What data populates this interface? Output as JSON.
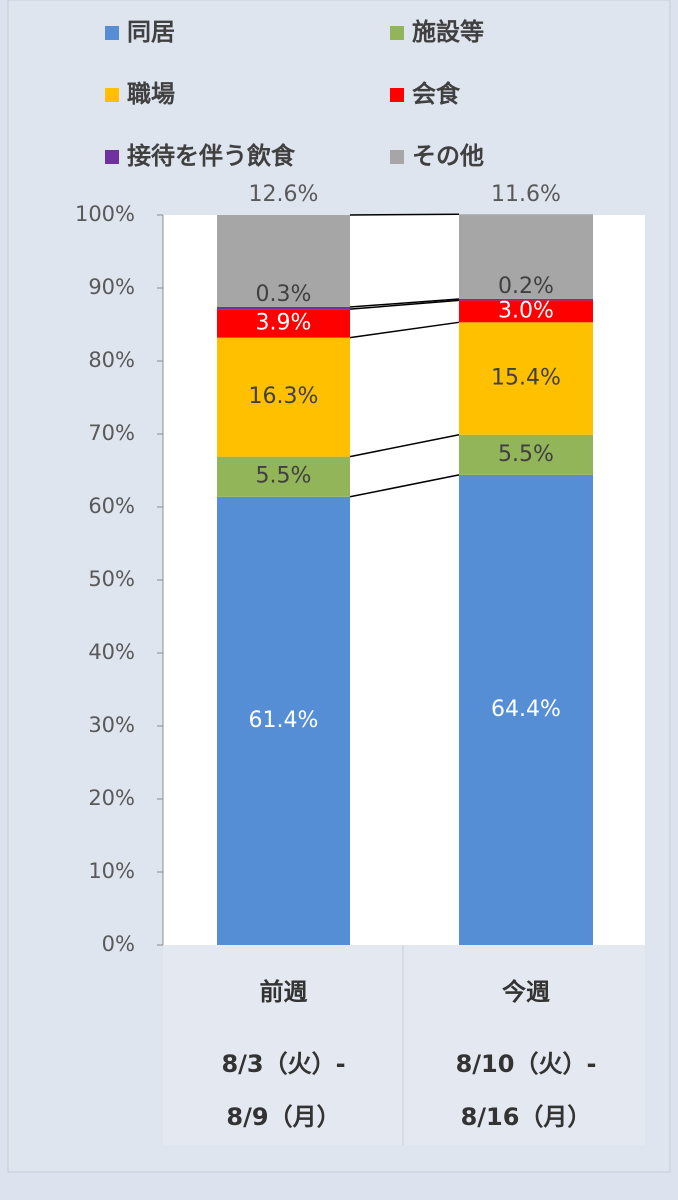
{
  "chart_data": {
    "type": "stacked_bar_100",
    "categories": [
      "前週",
      "今週"
    ],
    "category_dates": [
      [
        "8/3（火）-",
        "8/9（月）"
      ],
      [
        "8/10（火）-",
        "8/16（月）"
      ]
    ],
    "series": [
      {
        "name": "同居",
        "color": "#558ed5",
        "values": [
          61.4,
          64.4
        ],
        "value_labels": [
          "61.4%",
          "64.4%"
        ],
        "label_color": "#ffffff",
        "label_position": "center"
      },
      {
        "name": "施設等",
        "color": "#92b55a",
        "values": [
          5.5,
          5.5
        ],
        "value_labels": [
          "5.5%",
          "5.5%"
        ],
        "label_color": "#404040",
        "label_position": "center"
      },
      {
        "name": "職場",
        "color": "#ffc000",
        "values": [
          16.3,
          15.4
        ],
        "value_labels": [
          "16.3%",
          "15.4%"
        ],
        "label_color": "#404040",
        "label_position": "center"
      },
      {
        "name": "会食",
        "color": "#ff0000",
        "values": [
          3.9,
          3.0
        ],
        "value_labels": [
          "3.9%",
          "3.0%"
        ],
        "label_color": "#ffffff",
        "label_position": "center"
      },
      {
        "name": "接待を伴う飲食",
        "color": "#7030a0",
        "values": [
          0.3,
          0.2
        ],
        "value_labels": [
          "0.3%",
          "0.2%"
        ],
        "label_color": "#404040",
        "label_position": "above-segment"
      },
      {
        "name": "その他",
        "color": "#a6a6a6",
        "values": [
          12.6,
          11.6
        ],
        "value_labels": [
          "12.6%",
          "11.6%"
        ],
        "label_color": "#404040",
        "label_position": "above-bar"
      }
    ],
    "ylim": [
      0,
      100
    ],
    "yticks": [
      {
        "value": 0,
        "label": "0%"
      },
      {
        "value": 10,
        "label": "10%"
      },
      {
        "value": 20,
        "label": "20%"
      },
      {
        "value": 30,
        "label": "30%"
      },
      {
        "value": 40,
        "label": "40%"
      },
      {
        "value": 50,
        "label": "50%"
      },
      {
        "value": 60,
        "label": "60%"
      },
      {
        "value": 70,
        "label": "70%"
      },
      {
        "value": 80,
        "label": "80%"
      },
      {
        "value": 90,
        "label": "90%"
      },
      {
        "value": 100,
        "label": "100%"
      }
    ],
    "connector_lines": true
  }
}
